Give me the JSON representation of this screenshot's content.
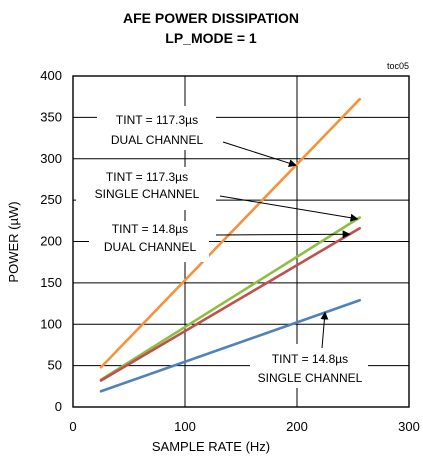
{
  "chart_data": {
    "type": "line",
    "title": [
      "AFE POWER DISSIPATION",
      "LP_MODE = 1"
    ],
    "chart_id": "toc05",
    "xlabel": "SAMPLE RATE (Hz)",
    "ylabel": "POWER (µW)",
    "xlim": [
      0,
      300
    ],
    "ylim": [
      0,
      400
    ],
    "xticks": [
      0,
      100,
      200,
      300
    ],
    "yticks": [
      0,
      50,
      100,
      150,
      200,
      250,
      300,
      350,
      400
    ],
    "grid": true,
    "series": [
      {
        "key": "dual_117",
        "x": [
          25,
          256
        ],
        "y": [
          48,
          372
        ],
        "color": "#f7923a"
      },
      {
        "key": "single_117",
        "x": [
          25,
          256
        ],
        "y": [
          33,
          229
        ],
        "color": "#8cbf3f"
      },
      {
        "key": "dual_14",
        "x": [
          25,
          256
        ],
        "y": [
          32,
          216
        ],
        "color": "#c0504d"
      },
      {
        "key": "single_14",
        "x": [
          25,
          256
        ],
        "y": [
          19,
          129
        ],
        "color": "#4f81bd"
      }
    ],
    "annotations": [
      {
        "key": "ann_dual_117",
        "lines": [
          "TINT = 117.3µs",
          "DUAL CHANNEL"
        ],
        "target_series": "dual_117"
      },
      {
        "key": "ann_single_117",
        "lines": [
          "TINT = 117.3µs",
          "SINGLE CHANNEL"
        ],
        "target_series": "single_117"
      },
      {
        "key": "ann_dual_14",
        "lines": [
          "TINT = 14.8µs",
          "DUAL CHANNEL"
        ],
        "target_series": "dual_14"
      },
      {
        "key": "ann_single_14",
        "lines": [
          "TINT = 14.8µs",
          "SINGLE CHANNEL"
        ],
        "target_series": "single_14"
      }
    ]
  }
}
